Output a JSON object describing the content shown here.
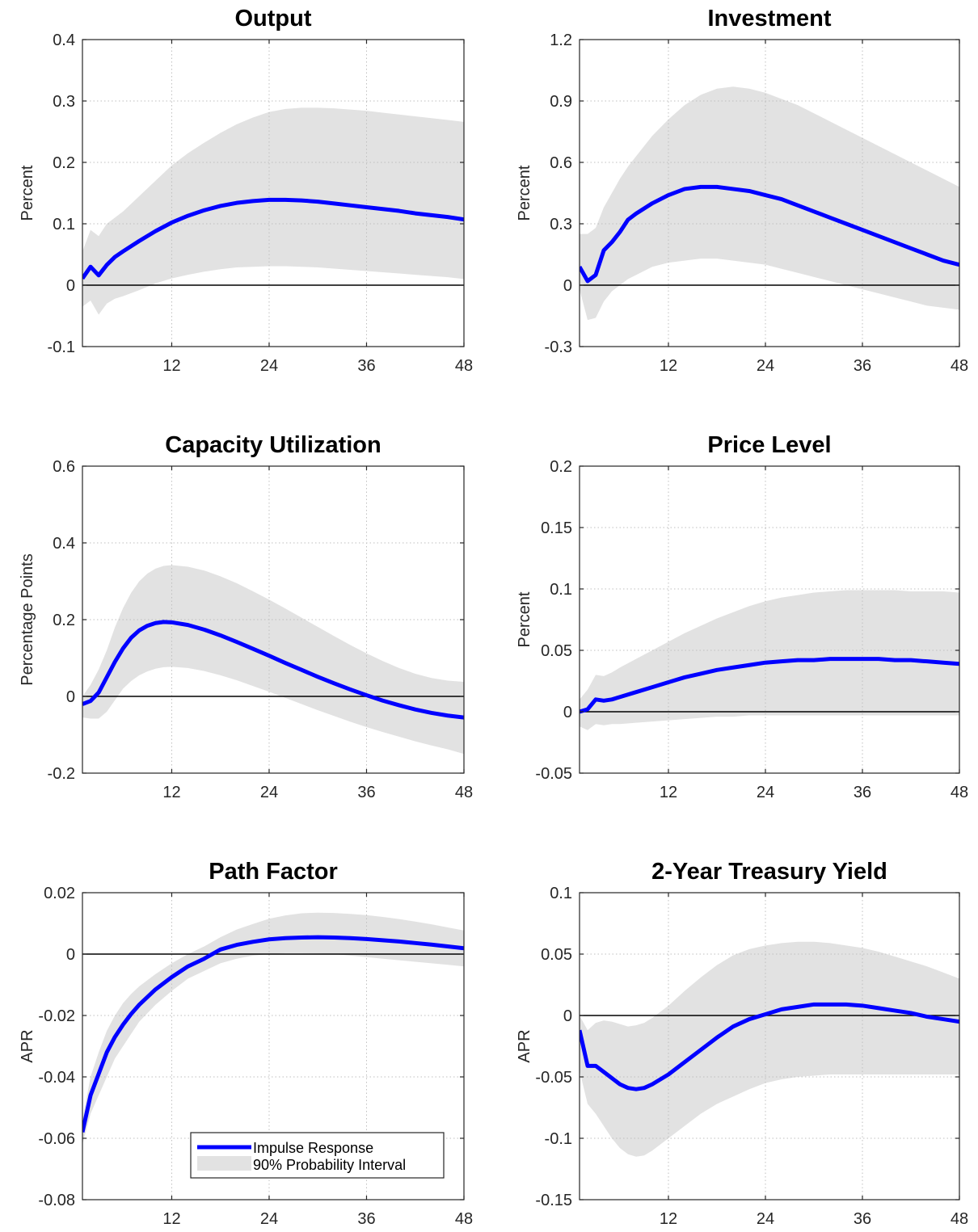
{
  "legend": {
    "response_label": "Impulse Response",
    "band_label": "90% Probability Interval"
  },
  "colors": {
    "response": "#0000ff",
    "band": "#e2e2e2",
    "zero_line": "#000000",
    "grid": "#bfbfbf",
    "axis": "#262626"
  },
  "chart_data": [
    {
      "type": "line",
      "title": "Output",
      "ylabel": "Percent",
      "xlim": [
        1,
        48
      ],
      "ylim": [
        -0.1,
        0.4
      ],
      "xticks": [
        12,
        24,
        36,
        48
      ],
      "yticks": [
        -0.1,
        0,
        0.1,
        0.2,
        0.3,
        0.4
      ],
      "ytick_labels": [
        "-0.1",
        "0",
        "0.1",
        "0.2",
        "0.3",
        "0.4"
      ],
      "grid": true,
      "x": [
        1,
        2,
        3,
        4,
        5,
        6,
        8,
        10,
        12,
        14,
        16,
        18,
        20,
        22,
        24,
        26,
        28,
        30,
        32,
        34,
        36,
        38,
        40,
        42,
        44,
        46,
        48
      ],
      "series": [
        {
          "name": "Impulse Response",
          "values": [
            0.011,
            0.03,
            0.016,
            0.033,
            0.046,
            0.055,
            0.072,
            0.088,
            0.102,
            0.113,
            0.122,
            0.129,
            0.134,
            0.137,
            0.139,
            0.139,
            0.138,
            0.136,
            0.133,
            0.13,
            0.127,
            0.124,
            0.121,
            0.117,
            0.114,
            0.111,
            0.107
          ]
        },
        {
          "name": "90% Probability Interval",
          "lower": [
            -0.035,
            -0.025,
            -0.048,
            -0.03,
            -0.022,
            -0.018,
            -0.008,
            0.003,
            0.011,
            0.017,
            0.022,
            0.026,
            0.029,
            0.03,
            0.031,
            0.031,
            0.03,
            0.029,
            0.027,
            0.025,
            0.023,
            0.021,
            0.019,
            0.017,
            0.015,
            0.013,
            0.01
          ],
          "upper": [
            0.055,
            0.09,
            0.08,
            0.1,
            0.11,
            0.12,
            0.145,
            0.17,
            0.195,
            0.215,
            0.232,
            0.248,
            0.262,
            0.273,
            0.282,
            0.287,
            0.289,
            0.289,
            0.288,
            0.286,
            0.284,
            0.281,
            0.278,
            0.275,
            0.272,
            0.269,
            0.266
          ]
        }
      ]
    },
    {
      "type": "line",
      "title": "Investment",
      "ylabel": "Percent",
      "xlim": [
        1,
        48
      ],
      "ylim": [
        -0.3,
        1.2
      ],
      "xticks": [
        12,
        24,
        36,
        48
      ],
      "yticks": [
        -0.3,
        0,
        0.3,
        0.6,
        0.9,
        1.2
      ],
      "ytick_labels": [
        "-0.3",
        "0",
        "0.3",
        "0.6",
        "0.9",
        "1.2"
      ],
      "grid": true,
      "x": [
        1,
        2,
        3,
        4,
        5,
        6,
        7,
        8,
        10,
        12,
        14,
        16,
        18,
        20,
        22,
        24,
        26,
        28,
        30,
        32,
        34,
        36,
        38,
        40,
        42,
        44,
        46,
        48
      ],
      "series": [
        {
          "name": "Impulse Response",
          "values": [
            0.09,
            0.02,
            0.05,
            0.17,
            0.21,
            0.26,
            0.32,
            0.35,
            0.4,
            0.44,
            0.47,
            0.48,
            0.48,
            0.47,
            0.46,
            0.44,
            0.42,
            0.39,
            0.36,
            0.33,
            0.3,
            0.27,
            0.24,
            0.21,
            0.18,
            0.15,
            0.12,
            0.1
          ]
        },
        {
          "name": "90% Probability Interval",
          "lower": [
            -0.02,
            -0.17,
            -0.16,
            -0.08,
            -0.03,
            0.0,
            0.03,
            0.05,
            0.09,
            0.11,
            0.12,
            0.13,
            0.13,
            0.12,
            0.11,
            0.1,
            0.08,
            0.06,
            0.04,
            0.02,
            0.0,
            -0.02,
            -0.04,
            -0.06,
            -0.08,
            -0.1,
            -0.11,
            -0.12
          ]
        },
        {
          "name": "90% Probability Interval upper",
          "upper": [
            0.25,
            0.25,
            0.28,
            0.38,
            0.45,
            0.52,
            0.58,
            0.63,
            0.73,
            0.81,
            0.88,
            0.93,
            0.96,
            0.97,
            0.96,
            0.94,
            0.91,
            0.88,
            0.84,
            0.8,
            0.76,
            0.72,
            0.68,
            0.64,
            0.6,
            0.56,
            0.52,
            0.48
          ]
        }
      ]
    },
    {
      "type": "line",
      "title": "Capacity Utilization",
      "ylabel": "Percentage Points",
      "xlim": [
        1,
        48
      ],
      "ylim": [
        -0.2,
        0.6
      ],
      "xticks": [
        12,
        24,
        36,
        48
      ],
      "yticks": [
        -0.2,
        0,
        0.2,
        0.4,
        0.6
      ],
      "ytick_labels": [
        "-0.2",
        "0",
        "0.2",
        "0.4",
        "0.6"
      ],
      "grid": true,
      "x": [
        1,
        2,
        3,
        4,
        5,
        6,
        7,
        8,
        9,
        10,
        11,
        12,
        14,
        16,
        18,
        20,
        22,
        24,
        26,
        28,
        30,
        32,
        34,
        36,
        38,
        40,
        42,
        44,
        46,
        48
      ],
      "series": [
        {
          "name": "Impulse Response",
          "values": [
            -0.02,
            -0.012,
            0.01,
            0.05,
            0.09,
            0.125,
            0.153,
            0.172,
            0.184,
            0.191,
            0.194,
            0.193,
            0.186,
            0.174,
            0.159,
            0.142,
            0.124,
            0.106,
            0.087,
            0.069,
            0.051,
            0.034,
            0.018,
            0.003,
            -0.011,
            -0.023,
            -0.034,
            -0.043,
            -0.05,
            -0.055
          ]
        },
        {
          "name": "90% Probability Interval",
          "lower": [
            -0.055,
            -0.058,
            -0.058,
            -0.04,
            -0.01,
            0.02,
            0.04,
            0.055,
            0.065,
            0.072,
            0.076,
            0.077,
            0.074,
            0.066,
            0.055,
            0.042,
            0.027,
            0.012,
            -0.004,
            -0.02,
            -0.036,
            -0.051,
            -0.066,
            -0.08,
            -0.093,
            -0.105,
            -0.117,
            -0.128,
            -0.138,
            -0.15
          ]
        },
        {
          "name": "90% Probability Interval upper",
          "upper": [
            0.0,
            0.03,
            0.07,
            0.12,
            0.18,
            0.23,
            0.27,
            0.3,
            0.32,
            0.333,
            0.34,
            0.342,
            0.338,
            0.328,
            0.313,
            0.295,
            0.274,
            0.252,
            0.229,
            0.205,
            0.181,
            0.157,
            0.134,
            0.112,
            0.092,
            0.074,
            0.059,
            0.048,
            0.041,
            0.038
          ]
        }
      ]
    },
    {
      "type": "line",
      "title": "Price Level",
      "ylabel": "Percent",
      "xlim": [
        1,
        48
      ],
      "ylim": [
        -0.05,
        0.2
      ],
      "xticks": [
        12,
        24,
        36,
        48
      ],
      "yticks": [
        -0.05,
        0,
        0.05,
        0.1,
        0.15,
        0.2
      ],
      "ytick_labels": [
        "-0.05",
        "0",
        "0.05",
        "0.1",
        "0.15",
        "0.2"
      ],
      "grid": true,
      "x": [
        1,
        2,
        3,
        4,
        5,
        6,
        8,
        10,
        12,
        14,
        16,
        18,
        20,
        22,
        24,
        26,
        28,
        30,
        32,
        34,
        36,
        38,
        40,
        42,
        44,
        46,
        48
      ],
      "series": [
        {
          "name": "Impulse Response",
          "values": [
            0.0,
            0.002,
            0.01,
            0.009,
            0.01,
            0.012,
            0.016,
            0.02,
            0.024,
            0.028,
            0.031,
            0.034,
            0.036,
            0.038,
            0.04,
            0.041,
            0.042,
            0.042,
            0.043,
            0.043,
            0.043,
            0.043,
            0.042,
            0.042,
            0.041,
            0.04,
            0.039
          ]
        },
        {
          "name": "90% Probability Interval",
          "lower": [
            -0.012,
            -0.015,
            -0.01,
            -0.011,
            -0.01,
            -0.01,
            -0.009,
            -0.008,
            -0.007,
            -0.006,
            -0.005,
            -0.004,
            -0.004,
            -0.003,
            -0.003,
            -0.003,
            -0.003,
            -0.003,
            -0.003,
            -0.003,
            -0.003,
            -0.003,
            -0.003,
            -0.003,
            -0.003,
            -0.003,
            -0.003
          ]
        },
        {
          "name": "90% Probability Interval upper",
          "upper": [
            0.01,
            0.018,
            0.03,
            0.029,
            0.032,
            0.036,
            0.043,
            0.05,
            0.057,
            0.064,
            0.07,
            0.076,
            0.081,
            0.086,
            0.09,
            0.093,
            0.095,
            0.097,
            0.098,
            0.099,
            0.099,
            0.099,
            0.099,
            0.098,
            0.098,
            0.098,
            0.097
          ]
        }
      ]
    },
    {
      "type": "line",
      "title": "Path Factor",
      "ylabel": "APR",
      "xlim": [
        1,
        48
      ],
      "ylim": [
        -0.08,
        0.02
      ],
      "xticks": [
        12,
        24,
        36,
        48
      ],
      "yticks": [
        -0.08,
        -0.06,
        -0.04,
        -0.02,
        0,
        0.02
      ],
      "ytick_labels": [
        "-0.08",
        "-0.06",
        "-0.04",
        "-0.02",
        "0",
        "0.02"
      ],
      "grid": true,
      "x": [
        1,
        2,
        3,
        4,
        5,
        6,
        7,
        8,
        10,
        12,
        14,
        16,
        18,
        20,
        22,
        24,
        26,
        28,
        30,
        32,
        34,
        36,
        38,
        40,
        42,
        44,
        46,
        48
      ],
      "series": [
        {
          "name": "Impulse Response",
          "values": [
            -0.058,
            -0.046,
            -0.039,
            -0.032,
            -0.027,
            -0.023,
            -0.0195,
            -0.0165,
            -0.0115,
            -0.0075,
            -0.004,
            -0.0015,
            0.0015,
            0.003,
            0.004,
            0.0048,
            0.0052,
            0.0054,
            0.0055,
            0.0054,
            0.0052,
            0.0049,
            0.0045,
            0.0041,
            0.0036,
            0.0031,
            0.0025,
            0.0019
          ]
        },
        {
          "name": "90% Probability Interval",
          "lower": [
            -0.062,
            -0.052,
            -0.046,
            -0.04,
            -0.034,
            -0.03,
            -0.026,
            -0.022,
            -0.0165,
            -0.012,
            -0.008,
            -0.0055,
            -0.003,
            -0.0015,
            -0.0005,
            0.0,
            0.0003,
            0.0003,
            0.0002,
            0.0,
            -0.0005,
            -0.001,
            -0.0015,
            -0.002,
            -0.0025,
            -0.003,
            -0.0035,
            -0.004
          ]
        },
        {
          "name": "90% Probability Interval upper",
          "upper": [
            -0.054,
            -0.04,
            -0.032,
            -0.025,
            -0.02,
            -0.016,
            -0.013,
            -0.0105,
            -0.0065,
            -0.003,
            0.0,
            0.0025,
            0.0055,
            0.008,
            0.0098,
            0.0115,
            0.0126,
            0.0133,
            0.0135,
            0.0134,
            0.0131,
            0.0127,
            0.0121,
            0.0114,
            0.0106,
            0.0097,
            0.0087,
            0.0077
          ]
        }
      ]
    },
    {
      "type": "line",
      "title": "2-Year Treasury Yield",
      "ylabel": "APR",
      "xlim": [
        1,
        48
      ],
      "ylim": [
        -0.15,
        0.1
      ],
      "xticks": [
        12,
        24,
        36,
        48
      ],
      "yticks": [
        -0.15,
        -0.1,
        -0.05,
        0,
        0.05,
        0.1
      ],
      "ytick_labels": [
        "-0.15",
        "-0.1",
        "-0.05",
        "0",
        "0.05",
        "0.1"
      ],
      "grid": true,
      "x": [
        1,
        2,
        3,
        4,
        5,
        6,
        7,
        8,
        9,
        10,
        12,
        14,
        16,
        18,
        20,
        22,
        24,
        26,
        28,
        30,
        32,
        34,
        36,
        38,
        40,
        42,
        44,
        46,
        48
      ],
      "series": [
        {
          "name": "Impulse Response",
          "values": [
            -0.012,
            -0.041,
            -0.041,
            -0.046,
            -0.051,
            -0.056,
            -0.059,
            -0.06,
            -0.059,
            -0.056,
            -0.048,
            -0.038,
            -0.028,
            -0.018,
            -0.009,
            -0.003,
            0.001,
            0.005,
            0.007,
            0.009,
            0.009,
            0.009,
            0.008,
            0.006,
            0.004,
            0.002,
            -0.001,
            -0.003,
            -0.005
          ]
        },
        {
          "name": "90% Probability Interval",
          "lower": [
            -0.045,
            -0.072,
            -0.08,
            -0.09,
            -0.1,
            -0.108,
            -0.113,
            -0.115,
            -0.114,
            -0.11,
            -0.1,
            -0.09,
            -0.08,
            -0.072,
            -0.066,
            -0.06,
            -0.055,
            -0.052,
            -0.05,
            -0.049,
            -0.048,
            -0.048,
            -0.048,
            -0.048,
            -0.048,
            -0.048,
            -0.048,
            -0.048,
            -0.048
          ]
        },
        {
          "name": "90% Probability Interval upper",
          "upper": [
            0.0,
            -0.012,
            -0.006,
            -0.004,
            -0.005,
            -0.007,
            -0.009,
            -0.008,
            -0.006,
            -0.002,
            0.008,
            0.02,
            0.031,
            0.041,
            0.049,
            0.054,
            0.057,
            0.059,
            0.06,
            0.06,
            0.059,
            0.057,
            0.055,
            0.052,
            0.048,
            0.044,
            0.04,
            0.035,
            0.03
          ]
        }
      ]
    }
  ]
}
